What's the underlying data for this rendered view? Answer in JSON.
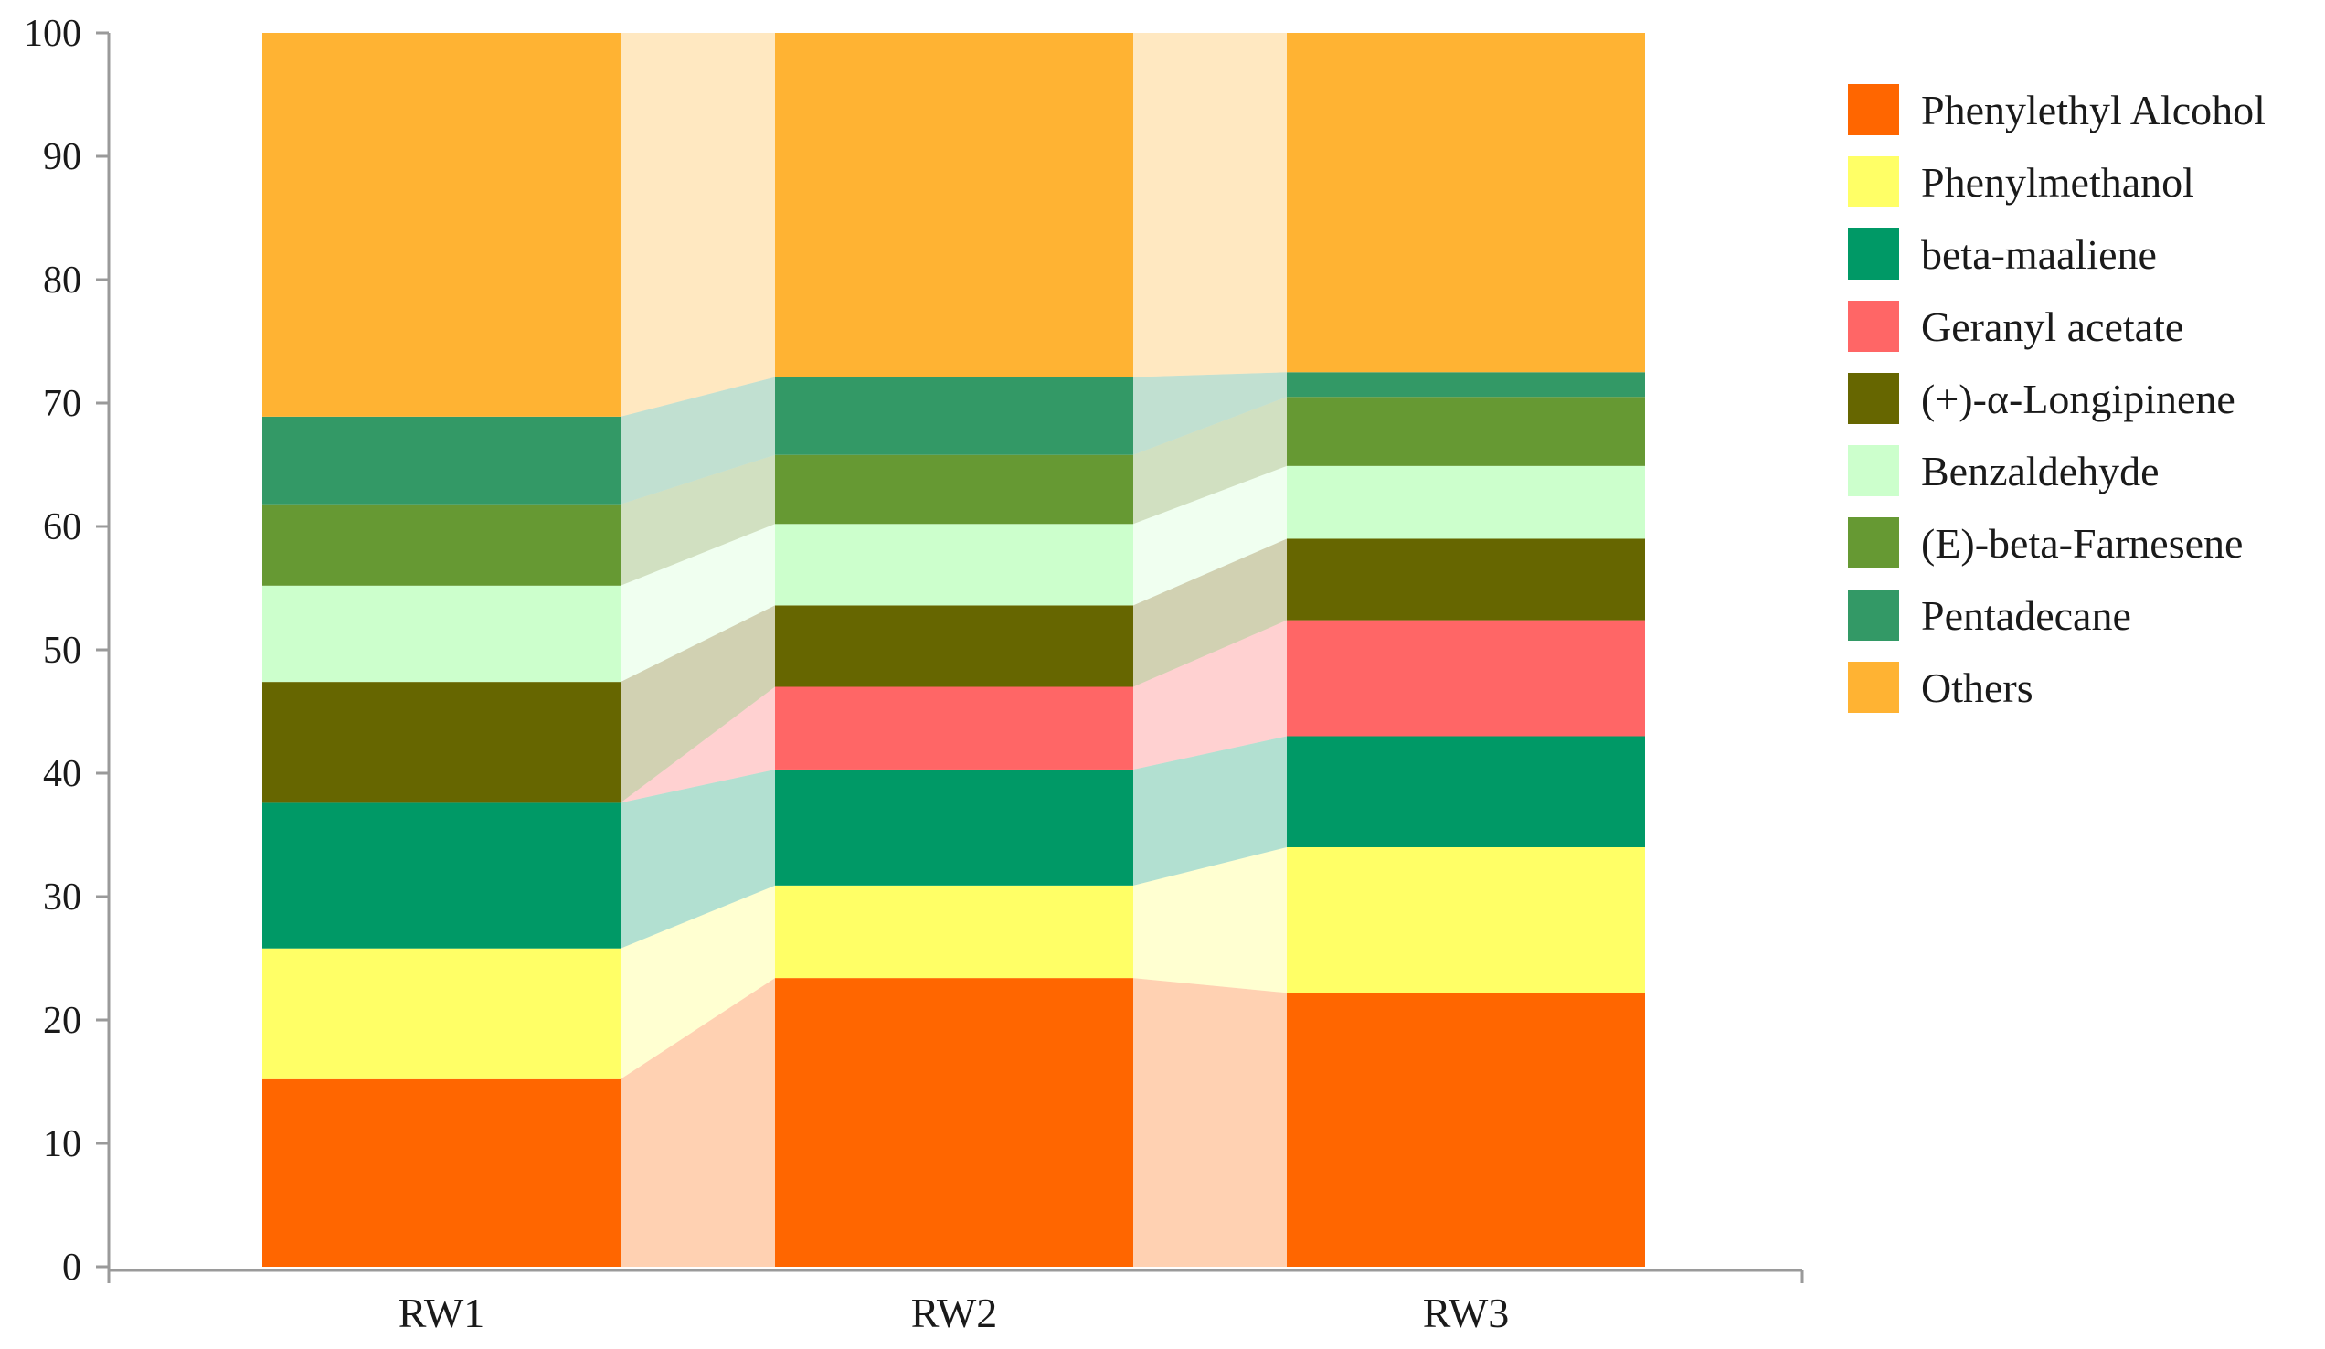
{
  "chart_data": {
    "type": "bar",
    "stacked": true,
    "percent_stacked": true,
    "title": "",
    "xlabel": "",
    "ylabel": "",
    "ylim": [
      0,
      100
    ],
    "yticks": [
      "0",
      "10",
      "20",
      "30",
      "40",
      "50",
      "60",
      "70",
      "80",
      "90",
      "100"
    ],
    "categories": [
      "RW1",
      "RW2",
      "RW3"
    ],
    "legend_position": "right",
    "series": [
      {
        "name": "Phenylethyl Alcohol",
        "color": "#ff6600",
        "values": [
          15.2,
          23.4,
          22.2
        ]
      },
      {
        "name": "Phenylmethanol",
        "color": "#ffff66",
        "values": [
          10.6,
          7.5,
          11.8
        ]
      },
      {
        "name": "beta-maaliene",
        "color": "#009966",
        "values": [
          11.8,
          9.4,
          9.0
        ]
      },
      {
        "name": "Geranyl acetate",
        "color": "#ff6666",
        "values": [
          0.0,
          6.7,
          9.4
        ]
      },
      {
        "name": "(+)-α-Longipinene",
        "color": "#666600",
        "values": [
          9.8,
          6.6,
          6.6
        ]
      },
      {
        "name": "Benzaldehyde",
        "color": "#ccffcc",
        "values": [
          7.8,
          6.6,
          5.9
        ]
      },
      {
        "name": "(E)-beta-Farnesene",
        "color": "#669933",
        "values": [
          6.6,
          5.6,
          5.6
        ]
      },
      {
        "name": "Pentadecane",
        "color": "#339966",
        "values": [
          7.1,
          6.3,
          2.0
        ]
      },
      {
        "name": "Others",
        "color": "#ffb333",
        "values": [
          31.1,
          27.9,
          27.5
        ]
      }
    ]
  }
}
